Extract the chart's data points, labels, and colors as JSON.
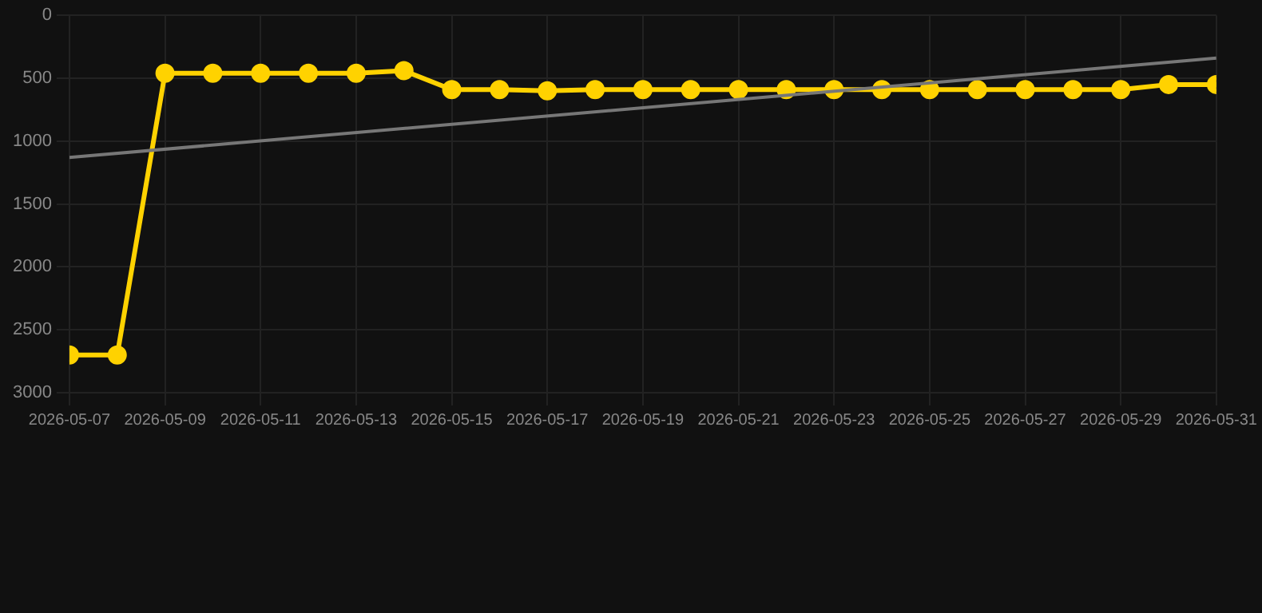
{
  "chart_data": {
    "type": "line",
    "x": [
      "2026-05-07",
      "2026-05-08",
      "2026-05-09",
      "2026-05-10",
      "2026-05-11",
      "2026-05-12",
      "2026-05-13",
      "2026-05-14",
      "2026-05-15",
      "2026-05-16",
      "2026-05-17",
      "2026-05-18",
      "2026-05-19",
      "2026-05-20",
      "2026-05-21",
      "2026-05-22",
      "2026-05-23",
      "2026-05-24",
      "2026-05-25",
      "2026-05-26",
      "2026-05-27",
      "2026-05-28",
      "2026-05-29",
      "2026-05-30",
      "2026-05-31"
    ],
    "series": [
      {
        "color": "#ffd200",
        "values": [
          2700,
          2700,
          460,
          460,
          460,
          460,
          460,
          440,
          590,
          590,
          600,
          590,
          590,
          590,
          590,
          590,
          590,
          590,
          590,
          590,
          590,
          590,
          590,
          550,
          550
        ],
        "marker": "circle"
      },
      {
        "type": "line",
        "color": "#777777",
        "x": [
          "2026-05-07",
          "2026-05-31"
        ],
        "values": [
          1130,
          340
        ],
        "marker": "none"
      }
    ],
    "xlim": [
      "2026-05-07",
      "2026-05-31"
    ],
    "xticks": [
      "2026-05-07",
      "2026-05-09",
      "2026-05-11",
      "2026-05-13",
      "2026-05-15",
      "2026-05-17",
      "2026-05-19",
      "2026-05-21",
      "2026-05-23",
      "2026-05-25",
      "2026-05-27",
      "2026-05-29",
      "2026-05-31"
    ],
    "ylim": [
      3000,
      0
    ],
    "yticks": [
      0,
      500,
      1000,
      1500,
      2000,
      2500,
      3000
    ],
    "grid": true,
    "legend": false,
    "line_style": "solid"
  }
}
